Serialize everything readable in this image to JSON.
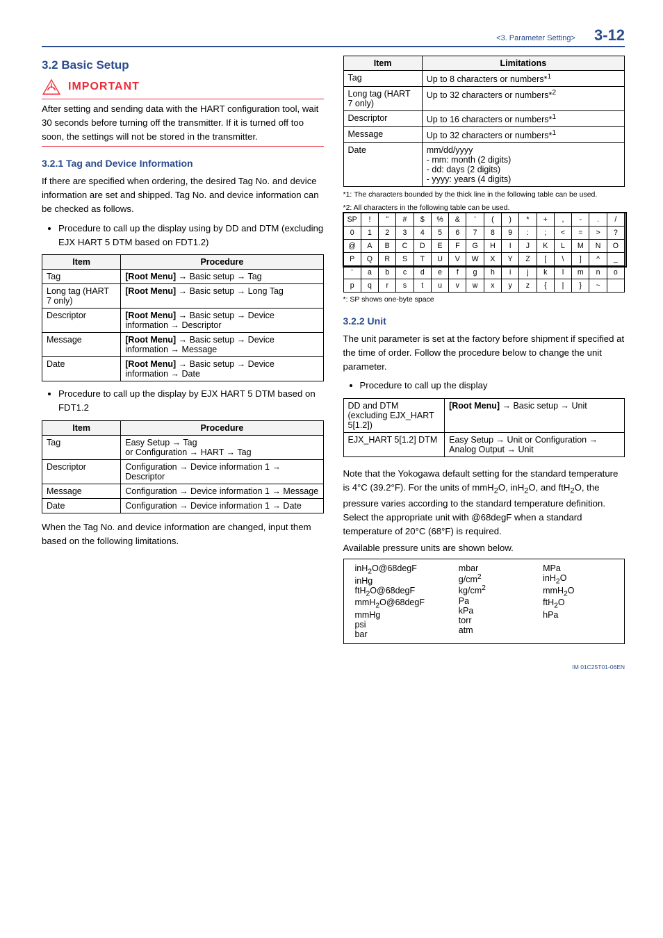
{
  "header": {
    "section": "<3.  Parameter Setting>",
    "pagenum": "3-12"
  },
  "section_title": "3.2   Basic Setup",
  "important_label": "IMPORTANT",
  "important_text": "After setting and sending data with the HART configuration tool, wait 30 seconds before turning off the transmitter. If it is turned off too soon, the settings will not be stored in the transmitter.",
  "sub1_title": "3.2.1   Tag and Device Information",
  "sub1_p1": "If there are specified when ordering, the desired Tag No. and device information are set and shipped. Tag No. and device information can be checked as follows.",
  "bullet1": "Procedure to call up the display using by DD and DTM (excluding EJX HART 5 DTM based on FDT1.2)",
  "proc_headers": {
    "item": "Item",
    "procedure": "Procedure"
  },
  "proc1": [
    {
      "item": "Tag",
      "proc": "[Root Menu] → Basic setup → Tag"
    },
    {
      "item": "Long tag (HART 7 only)",
      "proc": "[Root Menu] → Basic setup → Long Tag"
    },
    {
      "item": "Descriptor",
      "proc": "[Root Menu] → Basic setup → Device information → Descriptor"
    },
    {
      "item": "Message",
      "proc": "[Root Menu] → Basic setup → Device information → Message"
    },
    {
      "item": "Date",
      "proc": "[Root Menu] → Basic setup → Device information → Date"
    }
  ],
  "bullet2": "Procedure to call up the display by EJX HART 5 DTM based on FDT1.2",
  "proc2": [
    {
      "item": "Tag",
      "proc": "Easy Setup → Tag\nor Configuration → HART → Tag"
    },
    {
      "item": "Descriptor",
      "proc": "Configuration → Device information 1 → Descriptor"
    },
    {
      "item": "Message",
      "proc": "Configuration → Device information 1 → Message"
    },
    {
      "item": "Date",
      "proc": "Configuration → Device information 1 → Date"
    }
  ],
  "p_after_proc2": "When the Tag No. and device information are changed, input them based on the following limitations.",
  "limit_headers": {
    "item": "Item",
    "lim": "Limitations"
  },
  "limits": [
    {
      "item": "Tag",
      "lim": "Up to 8 characters or numbers*1"
    },
    {
      "item": "Long tag (HART 7 only)",
      "lim": "Up to 32 characters or numbers*2"
    },
    {
      "item": "Descriptor",
      "lim": "Up to 16 characters or numbers*1"
    },
    {
      "item": "Message",
      "lim": "Up to 32 characters or numbers*1"
    },
    {
      "item": "Date",
      "lim": "mm/dd/yyyy\n- mm: month (2 digits)\n- dd: days (2 digits)\n- yyyy: years (4 digits)"
    }
  ],
  "foot1": "*1:    The characters bounded by the thick line in the following table can be used.",
  "foot2": "*2:    All characters in the following table can be used.",
  "charmap": [
    [
      "SP",
      "!",
      "\"",
      "#",
      "$",
      "%",
      "&",
      "'",
      "(",
      ")",
      "*",
      "+",
      ",",
      "-",
      ".",
      "/"
    ],
    [
      "0",
      "1",
      "2",
      "3",
      "4",
      "5",
      "6",
      "7",
      "8",
      "9",
      ":",
      ";",
      "<",
      "=",
      ">",
      "?"
    ],
    [
      "@",
      "A",
      "B",
      "C",
      "D",
      "E",
      "F",
      "G",
      "H",
      "I",
      "J",
      "K",
      "L",
      "M",
      "N",
      "O"
    ],
    [
      "P",
      "Q",
      "R",
      "S",
      "T",
      "U",
      "V",
      "W",
      "X",
      "Y",
      "Z",
      "[",
      "\\",
      "]",
      "^",
      "_"
    ],
    [
      "'",
      "a",
      "b",
      "c",
      "d",
      "e",
      "f",
      "g",
      "h",
      "i",
      "j",
      "k",
      "l",
      "m",
      "n",
      "o"
    ],
    [
      "p",
      "q",
      "r",
      "s",
      "t",
      "u",
      "v",
      "w",
      "x",
      "y",
      "z",
      "{",
      "|",
      "}",
      "~",
      ""
    ]
  ],
  "sp_note": "*: SP shows one-byte space",
  "sub2_title": "3.2.2   Unit",
  "sub2_p1": "The unit parameter is set at the factory before shipment if specified at the time of order. Follow the procedure below to change the unit parameter.",
  "bullet3": "Procedure to call up the display",
  "proc3a_item": "DD and DTM (excluding EJX_HART 5[1.2])",
  "proc3a_proc": "[Root Menu] → Basic setup → Unit",
  "proc3b_item": "EJX_HART 5[1.2] DTM",
  "proc3b_proc": "Easy Setup → Unit or Configuration → Analog Output → Unit",
  "sub2_p2": "Note that the Yokogawa default setting for the standard temperature is 4°C (39.2°F). For the units of mmH2O, inH2O, and ftH2O, the pressure varies according to the standard temperature definition. Select the appropriate unit with @68degF when a standard temperature of 20°C (68°F) is required.",
  "sub2_p3": "Available pressure units are shown below.",
  "units_col1": "inH2O@68degF\ninHg\nftH2O@68degF\nmmH2O@68degF\nmmHg\npsi\nbar",
  "units_col2": "mbar\ng/cm2\nkg/cm2\nPa\nkPa\ntorr\natm",
  "units_col3": "MPa\ninH2O\nmmH2O\nftH2O\nhPa",
  "doc_id": "IM 01C25T01-06EN"
}
